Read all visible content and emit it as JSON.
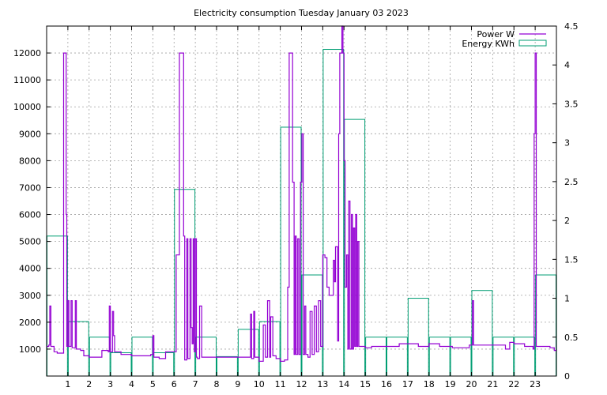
{
  "chart_data": {
    "type": "line",
    "title": "Electricity consumption Tuesday January 03 2023",
    "xlabel": "",
    "ylabel": "",
    "y2label": "",
    "xlim": [
      0,
      24
    ],
    "ylim": [
      0,
      13000
    ],
    "y2lim": [
      0,
      4.5
    ],
    "x_ticks": [
      1,
      2,
      3,
      4,
      5,
      6,
      7,
      8,
      9,
      10,
      11,
      12,
      13,
      14,
      15,
      16,
      17,
      18,
      19,
      20,
      21,
      22,
      23
    ],
    "y_ticks": [
      1000,
      2000,
      3000,
      4000,
      5000,
      6000,
      7000,
      8000,
      9000,
      10000,
      11000,
      12000
    ],
    "y2_ticks": [
      0,
      0.5,
      1,
      1.5,
      2,
      2.5,
      3,
      3.5,
      4,
      4.5
    ],
    "y2_tick_labels": [
      "0",
      "0.5",
      "1",
      "1.5",
      "2",
      "2.5",
      "3",
      "3.5",
      "4",
      "4.5"
    ],
    "grid": true,
    "legend_position": "top-right",
    "colors": {
      "power": "#9400d3",
      "energy": "#009e73"
    },
    "series": [
      {
        "name": "Power W",
        "axis": "y1",
        "style": "line",
        "points": [
          [
            0,
            1100
          ],
          [
            0.1,
            1150
          ],
          [
            0.15,
            2600
          ],
          [
            0.2,
            1100
          ],
          [
            0.35,
            900
          ],
          [
            0.5,
            850
          ],
          [
            0.75,
            850
          ],
          [
            0.8,
            12000
          ],
          [
            0.88,
            12000
          ],
          [
            0.92,
            6000
          ],
          [
            0.95,
            1100
          ],
          [
            1.0,
            2800
          ],
          [
            1.05,
            1100
          ],
          [
            1.15,
            2800
          ],
          [
            1.2,
            1050
          ],
          [
            1.35,
            2800
          ],
          [
            1.4,
            1000
          ],
          [
            1.6,
            950
          ],
          [
            1.75,
            750
          ],
          [
            2.0,
            700
          ],
          [
            2.4,
            700
          ],
          [
            2.6,
            950
          ],
          [
            2.9,
            900
          ],
          [
            2.95,
            2600
          ],
          [
            3.0,
            900
          ],
          [
            3.1,
            2400
          ],
          [
            3.15,
            1500
          ],
          [
            3.2,
            900
          ],
          [
            3.5,
            800
          ],
          [
            4.0,
            750
          ],
          [
            4.5,
            750
          ],
          [
            4.9,
            800
          ],
          [
            5.0,
            1500
          ],
          [
            5.05,
            700
          ],
          [
            5.3,
            650
          ],
          [
            5.6,
            900
          ],
          [
            6.0,
            900
          ],
          [
            6.1,
            4500
          ],
          [
            6.25,
            12000
          ],
          [
            6.38,
            12000
          ],
          [
            6.45,
            5200
          ],
          [
            6.5,
            600
          ],
          [
            6.6,
            5100
          ],
          [
            6.65,
            650
          ],
          [
            6.75,
            5100
          ],
          [
            6.8,
            1800
          ],
          [
            6.85,
            1200
          ],
          [
            6.9,
            5100
          ],
          [
            6.95,
            900
          ],
          [
            7.0,
            5100
          ],
          [
            7.05,
            700
          ],
          [
            7.1,
            650
          ],
          [
            7.2,
            2600
          ],
          [
            7.3,
            700
          ],
          [
            8.0,
            700
          ],
          [
            9.0,
            700
          ],
          [
            9.5,
            700
          ],
          [
            9.6,
            2300
          ],
          [
            9.65,
            650
          ],
          [
            9.75,
            2400
          ],
          [
            9.8,
            700
          ],
          [
            10.0,
            550
          ],
          [
            10.2,
            1900
          ],
          [
            10.3,
            700
          ],
          [
            10.4,
            2800
          ],
          [
            10.5,
            700
          ],
          [
            10.55,
            2200
          ],
          [
            10.65,
            750
          ],
          [
            10.8,
            650
          ],
          [
            11.0,
            550
          ],
          [
            11.2,
            600
          ],
          [
            11.35,
            3300
          ],
          [
            11.42,
            12000
          ],
          [
            11.52,
            12000
          ],
          [
            11.58,
            7200
          ],
          [
            11.65,
            800
          ],
          [
            11.7,
            5200
          ],
          [
            11.75,
            800
          ],
          [
            11.82,
            5100
          ],
          [
            11.88,
            800
          ],
          [
            11.95,
            7200
          ],
          [
            12.02,
            9000
          ],
          [
            12.08,
            800
          ],
          [
            12.15,
            2600
          ],
          [
            12.2,
            800
          ],
          [
            12.3,
            700
          ],
          [
            12.4,
            2400
          ],
          [
            12.5,
            800
          ],
          [
            12.6,
            2600
          ],
          [
            12.7,
            900
          ],
          [
            12.8,
            2800
          ],
          [
            12.9,
            1100
          ],
          [
            13.0,
            4500
          ],
          [
            13.1,
            4400
          ],
          [
            13.2,
            3300
          ],
          [
            13.3,
            3000
          ],
          [
            13.5,
            4300
          ],
          [
            13.55,
            3500
          ],
          [
            13.6,
            4800
          ],
          [
            13.7,
            1300
          ],
          [
            13.75,
            9000
          ],
          [
            13.8,
            12000
          ],
          [
            13.85,
            12000
          ],
          [
            13.9,
            13000
          ],
          [
            13.95,
            12000
          ],
          [
            14.0,
            8000
          ],
          [
            14.05,
            3300
          ],
          [
            14.12,
            4500
          ],
          [
            14.18,
            1000
          ],
          [
            14.22,
            6500
          ],
          [
            14.28,
            1000
          ],
          [
            14.35,
            6000
          ],
          [
            14.4,
            1000
          ],
          [
            14.45,
            5500
          ],
          [
            14.5,
            1100
          ],
          [
            14.55,
            6000
          ],
          [
            14.6,
            1100
          ],
          [
            14.65,
            5000
          ],
          [
            14.7,
            1100
          ],
          [
            14.8,
            1100
          ],
          [
            15.0,
            1050
          ],
          [
            15.3,
            1100
          ],
          [
            16.0,
            1100
          ],
          [
            16.4,
            1100
          ],
          [
            16.6,
            1200
          ],
          [
            17.0,
            1200
          ],
          [
            17.5,
            1100
          ],
          [
            18.0,
            1200
          ],
          [
            18.5,
            1100
          ],
          [
            18.9,
            1100
          ],
          [
            19.1,
            1050
          ],
          [
            19.5,
            1050
          ],
          [
            19.9,
            1150
          ],
          [
            20.05,
            2800
          ],
          [
            20.1,
            1150
          ],
          [
            20.5,
            1150
          ],
          [
            21.0,
            1150
          ],
          [
            21.3,
            1150
          ],
          [
            21.6,
            1000
          ],
          [
            21.8,
            1250
          ],
          [
            22.0,
            1200
          ],
          [
            22.5,
            1100
          ],
          [
            22.9,
            1000
          ],
          [
            22.95,
            9000
          ],
          [
            23.0,
            12000
          ],
          [
            23.05,
            1100
          ],
          [
            23.2,
            1100
          ],
          [
            23.5,
            1100
          ],
          [
            23.7,
            1050
          ],
          [
            23.9,
            950
          ],
          [
            24.0,
            1000
          ]
        ]
      },
      {
        "name": "Energy KWh",
        "axis": "y2",
        "style": "boxes",
        "hours": [
          0,
          1,
          2,
          3,
          4,
          5,
          6,
          7,
          8,
          9,
          10,
          11,
          12,
          13,
          14,
          15,
          16,
          17,
          18,
          19,
          20,
          21,
          22,
          23
        ],
        "values": [
          1.8,
          0.7,
          0.5,
          0.3,
          0.5,
          0.3,
          2.4,
          0.5,
          0.25,
          0.6,
          0.7,
          3.2,
          1.3,
          4.2,
          3.3,
          0.5,
          0.5,
          1.0,
          0.5,
          0.5,
          1.1,
          0.5,
          0.5,
          1.3
        ]
      }
    ]
  }
}
